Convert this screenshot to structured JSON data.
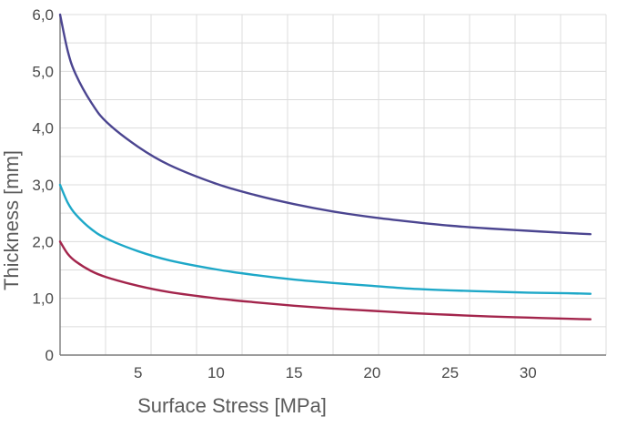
{
  "chart_data": {
    "type": "line",
    "title": "",
    "xlabel": "Surface Stress   [MPa]",
    "ylabel": "Thickness   [mm]",
    "xlim": [
      0,
      35
    ],
    "ylim": [
      0,
      6
    ],
    "x_ticks": [
      {
        "value": 5,
        "label": "5"
      },
      {
        "value": 10,
        "label": "10"
      },
      {
        "value": 15,
        "label": "15"
      },
      {
        "value": 20,
        "label": "20"
      },
      {
        "value": 25,
        "label": "25"
      },
      {
        "value": 30,
        "label": "30"
      }
    ],
    "y_ticks": [
      {
        "value": 0,
        "label": "0"
      },
      {
        "value": 1,
        "label": "1,0"
      },
      {
        "value": 2,
        "label": "2,0"
      },
      {
        "value": 3,
        "label": "3,0"
      },
      {
        "value": 4,
        "label": "4,0"
      },
      {
        "value": 5,
        "label": "5,0"
      },
      {
        "value": 6,
        "label": "6,0"
      }
    ],
    "grid": true,
    "legend": "none",
    "x": [
      0,
      0.5,
      1,
      2,
      3,
      5,
      7,
      10,
      12.5,
      15,
      17.5,
      20,
      22.5,
      25,
      27.5,
      30,
      32.5,
      34
    ],
    "series": [
      {
        "color": "#4b4590",
        "values": [
          6.0,
          5.35,
          4.95,
          4.45,
          4.1,
          3.67,
          3.35,
          3.02,
          2.82,
          2.66,
          2.53,
          2.43,
          2.35,
          2.28,
          2.23,
          2.19,
          2.15,
          2.13
        ]
      },
      {
        "color": "#1ea8c8",
        "values": [
          3.0,
          2.68,
          2.48,
          2.22,
          2.05,
          1.83,
          1.67,
          1.51,
          1.41,
          1.33,
          1.27,
          1.22,
          1.17,
          1.14,
          1.12,
          1.1,
          1.09,
          1.08
        ]
      },
      {
        "color": "#a3254c",
        "values": [
          2.0,
          1.78,
          1.65,
          1.48,
          1.37,
          1.22,
          1.11,
          1.0,
          0.93,
          0.87,
          0.82,
          0.78,
          0.74,
          0.71,
          0.68,
          0.66,
          0.64,
          0.63
        ]
      }
    ]
  }
}
